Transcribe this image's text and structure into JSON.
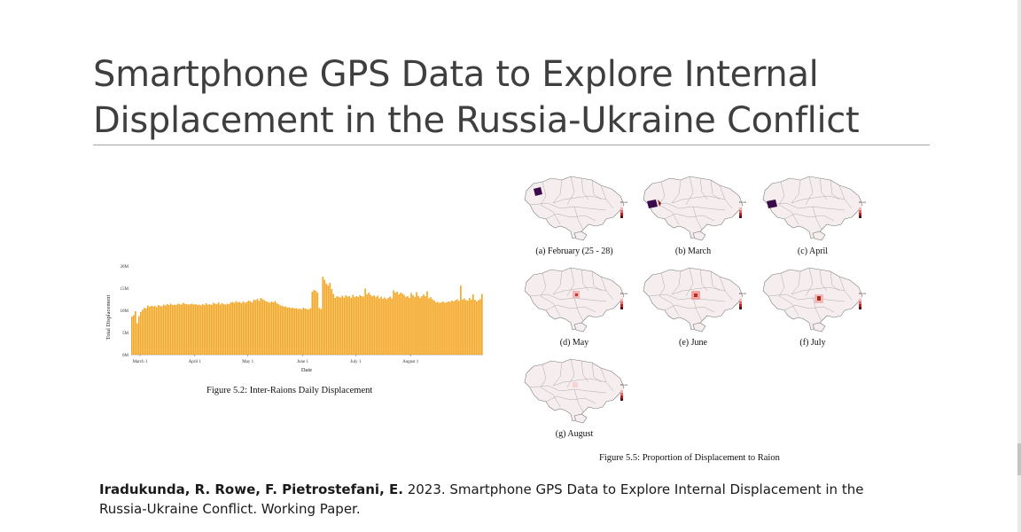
{
  "slide": {
    "title": "Smartphone GPS Data to Explore Internal Displacement in the Russia-Ukraine Conflict"
  },
  "figure_left": {
    "caption": "Figure 5.2: Inter-Raions Daily Displacement",
    "xlabel": "Date",
    "ylabel": "Total Displacement",
    "x_ticks": [
      "March 1",
      "April 1",
      "May 1",
      "June 1",
      "July 1",
      "August 1"
    ],
    "y_ticks": [
      "0M",
      "5M",
      "10M",
      "15M",
      "20M"
    ],
    "bar_color": "#F5A623"
  },
  "figure_right": {
    "caption": "Figure 5.5: Proportion of Displacement to Raion",
    "legend_title": "Percentage",
    "panels": [
      {
        "label": "(a) February (25 - 28)"
      },
      {
        "label": "(b) March"
      },
      {
        "label": "(c) April"
      },
      {
        "label": "(d) May"
      },
      {
        "label": "(e) June"
      },
      {
        "label": "(f) July"
      },
      {
        "label": "(g) August"
      }
    ]
  },
  "citation": {
    "authors": "Iradukunda, R. Rowe, F. Pietrostefani, E.",
    "rest": " 2023. Smartphone GPS Data to Explore Internal Displacement in the Russia-Ukraine Conflict. Working Paper."
  },
  "chart_data": {
    "type": "bar",
    "title": "",
    "xlabel": "Date",
    "ylabel": "Total Displacement",
    "ylim": [
      0,
      20000000
    ],
    "x_range": [
      "2022-02-24",
      "2022-08-31"
    ],
    "x_tick_labels": [
      "March 1",
      "April 1",
      "May 1",
      "June 1",
      "July 1",
      "August 1"
    ],
    "y_tick_labels": [
      "0M",
      "5M",
      "10M",
      "15M",
      "20M"
    ],
    "values": [
      8.6,
      8.9,
      9.8,
      7.1,
      8.7,
      9.6,
      10.1,
      10.6,
      10.4,
      11.1,
      10.8,
      11.0,
      10.9,
      11.0,
      10.7,
      11.2,
      11.0,
      10.9,
      11.3,
      11.1,
      11.4,
      11.2,
      11.5,
      11.2,
      11.3,
      11.2,
      11.5,
      11.4,
      11.3,
      11.7,
      11.5,
      11.4,
      11.3,
      11.4,
      11.5,
      11.3,
      11.4,
      11.2,
      11.3,
      11.1,
      11.4,
      11.2,
      11.6,
      11.3,
      11.4,
      11.2,
      11.7,
      11.5,
      11.4,
      11.8,
      11.3,
      11.6,
      11.4,
      11.3,
      11.5,
      11.4,
      11.8,
      11.9,
      11.7,
      12.1,
      11.8,
      11.9,
      11.6,
      12.0,
      11.7,
      11.9,
      12.2,
      12.0,
      11.8,
      12.4,
      12.3,
      12.6,
      12.1,
      12.8,
      12.5,
      12.3,
      12.0,
      11.9,
      11.7,
      12.0,
      11.8,
      12.1,
      11.6,
      11.4,
      11.1,
      11.0,
      10.8,
      10.9,
      10.6,
      10.7,
      10.5,
      10.6,
      10.4,
      10.5,
      10.3,
      10.4,
      10.2,
      10.6,
      10.4,
      10.3,
      10.2,
      10.5,
      14.2,
      14.6,
      14.4,
      14.0,
      10.5,
      10.3,
      17.6,
      16.9,
      16.0,
      15.6,
      16.2,
      14.8,
      13.7,
      12.8,
      13.2,
      13.0,
      12.9,
      13.3,
      12.9,
      13.4,
      13.1,
      13.2,
      12.8,
      13.5,
      13.0,
      13.2,
      13.0,
      13.4,
      13.2,
      13.1,
      14.9,
      13.6,
      14.0,
      13.5,
      13.2,
      13.4,
      13.0,
      13.3,
      12.7,
      13.1,
      12.6,
      12.9,
      12.5,
      12.8,
      13.1,
      12.7,
      14.5,
      14.0,
      14.2,
      13.6,
      14.0,
      13.8,
      13.5,
      13.0,
      13.2,
      12.8,
      13.9,
      13.4,
      13.0,
      14.1,
      13.3,
      12.8,
      13.2,
      13.6,
      13.2,
      14.3,
      12.7,
      13.0,
      12.5,
      12.2,
      11.8,
      11.9,
      11.7,
      11.8,
      12.0,
      11.7,
      11.8,
      12.0,
      11.9,
      12.2,
      12.0,
      12.3,
      12.5,
      12.1,
      15.6,
      12.4,
      12.7,
      12.3,
      12.2,
      12.8,
      12.4,
      13.6,
      12.4,
      12.0,
      12.3,
      12.5,
      13.7
    ],
    "value_units": "millions"
  }
}
